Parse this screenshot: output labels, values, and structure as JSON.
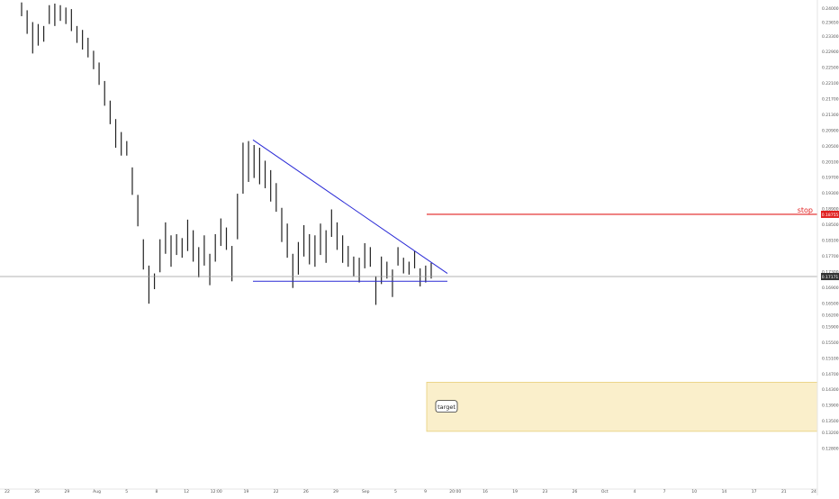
{
  "chart_data": {
    "type": "bar",
    "title": "",
    "xlabel": "",
    "ylabel": "",
    "grid": false,
    "ylim": [
      0.1192,
      0.2412
    ],
    "y_ticks": [
      "0.24000",
      "0.23650",
      "0.23300",
      "0.22900",
      "0.22500",
      "0.22100",
      "0.21700",
      "0.21300",
      "0.20900",
      "0.20500",
      "0.20100",
      "0.19700",
      "0.19300",
      "0.18900",
      "0.18500",
      "0.18100",
      "0.17700",
      "0.17300",
      "0.16900",
      "0.16500",
      "0.16200",
      "0.15900",
      "0.15500",
      "0.15100",
      "0.14700",
      "0.14300",
      "0.13900",
      "0.13500",
      "0.13200",
      "0.12800"
    ],
    "x_ticks": [
      "22",
      "26",
      "29",
      "Aug",
      "5",
      "8",
      "12",
      "12:00",
      "19",
      "22",
      "26",
      "29",
      "Sep",
      "5",
      "9",
      "20:00",
      "16",
      "19",
      "23",
      "26",
      "Oct",
      "4",
      "7",
      "10",
      "14",
      "17",
      "21",
      "24"
    ],
    "current_price": {
      "label": "0.17171",
      "value": 0.17171,
      "color": "#333333"
    },
    "stop": {
      "label": "stop",
      "price_label": "0.18755",
      "value": 0.18755,
      "color": "#e02020"
    },
    "target": {
      "label": "target",
      "from": 0.1323,
      "to": 0.1448,
      "color": "#f5dc8c"
    },
    "trendlines": [
      {
        "name": "descending-resistance",
        "x": [
          "Aug 21",
          "Sep 16"
        ],
        "y": [
          0.2065,
          0.1725
        ],
        "color": "#2a2ad6"
      },
      {
        "name": "horizontal-support",
        "x": [
          "Aug 21",
          "Sep 16"
        ],
        "y": [
          0.1705,
          0.1705
        ],
        "color": "#2a2ad6"
      }
    ],
    "series": [
      {
        "values": [
          [
            0.238,
            0.2415
          ],
          [
            0.2335,
            0.2395
          ],
          [
            0.2285,
            0.2365
          ],
          [
            0.2305,
            0.236
          ],
          [
            0.2315,
            0.2355
          ],
          [
            0.236,
            0.2408
          ],
          [
            0.2355,
            0.2412
          ],
          [
            0.2368,
            0.2408
          ],
          [
            0.236,
            0.2402
          ],
          [
            0.2342,
            0.2398
          ],
          [
            0.2312,
            0.2355
          ],
          [
            0.2295,
            0.2345
          ],
          [
            0.2275,
            0.2325
          ],
          [
            0.2245,
            0.2292
          ],
          [
            0.2205,
            0.2262
          ],
          [
            0.2152,
            0.2215
          ],
          [
            0.2105,
            0.2165
          ],
          [
            0.2045,
            0.2118
          ],
          [
            0.2025,
            0.2085
          ],
          [
            0.2025,
            0.2062
          ],
          [
            0.1925,
            0.1995
          ],
          [
            0.1845,
            0.1925
          ],
          [
            0.1735,
            0.1812
          ],
          [
            0.1648,
            0.1745
          ],
          [
            0.1685,
            0.1725
          ],
          [
            0.1728,
            0.1812
          ],
          [
            0.1775,
            0.1855
          ],
          [
            0.1742,
            0.1822
          ],
          [
            0.1772,
            0.1825
          ],
          [
            0.1765,
            0.1815
          ],
          [
            0.1782,
            0.1862
          ],
          [
            0.1755,
            0.1835
          ],
          [
            0.1715,
            0.1792
          ],
          [
            0.1745,
            0.1822
          ],
          [
            0.1695,
            0.1775
          ],
          [
            0.1755,
            0.1825
          ],
          [
            0.1795,
            0.1865
          ],
          [
            0.1785,
            0.1842
          ],
          [
            0.1705,
            0.1795
          ],
          [
            0.1812,
            0.1928
          ],
          [
            0.1928,
            0.2058
          ],
          [
            0.1958,
            0.2062
          ],
          [
            0.1968,
            0.2052
          ],
          [
            0.1952,
            0.2045
          ],
          [
            0.1942,
            0.2012
          ],
          [
            0.1908,
            0.1988
          ],
          [
            0.1882,
            0.1955
          ],
          [
            0.1805,
            0.1892
          ],
          [
            0.1765,
            0.1852
          ],
          [
            0.1688,
            0.1775
          ],
          [
            0.1722,
            0.1805
          ],
          [
            0.1768,
            0.1848
          ],
          [
            0.1748,
            0.1825
          ],
          [
            0.1742,
            0.1822
          ],
          [
            0.1772,
            0.1852
          ],
          [
            0.1752,
            0.1835
          ],
          [
            0.1818,
            0.1888
          ],
          [
            0.1785,
            0.1855
          ],
          [
            0.1752,
            0.1822
          ],
          [
            0.1742,
            0.1795
          ],
          [
            0.1718,
            0.1768
          ],
          [
            0.1702,
            0.1765
          ],
          [
            0.1738,
            0.1802
          ],
          [
            0.1742,
            0.1792
          ],
          [
            0.1645,
            0.1718
          ],
          [
            0.1698,
            0.1768
          ],
          [
            0.1712,
            0.1755
          ],
          [
            0.1665,
            0.1735
          ],
          [
            0.1745,
            0.1792
          ],
          [
            0.1725,
            0.1765
          ],
          [
            0.1722,
            0.1755
          ],
          [
            0.1738,
            0.1782
          ],
          [
            0.1692,
            0.1738
          ],
          [
            0.1702,
            0.1745
          ],
          [
            0.1712,
            0.1752
          ]
        ]
      }
    ]
  }
}
